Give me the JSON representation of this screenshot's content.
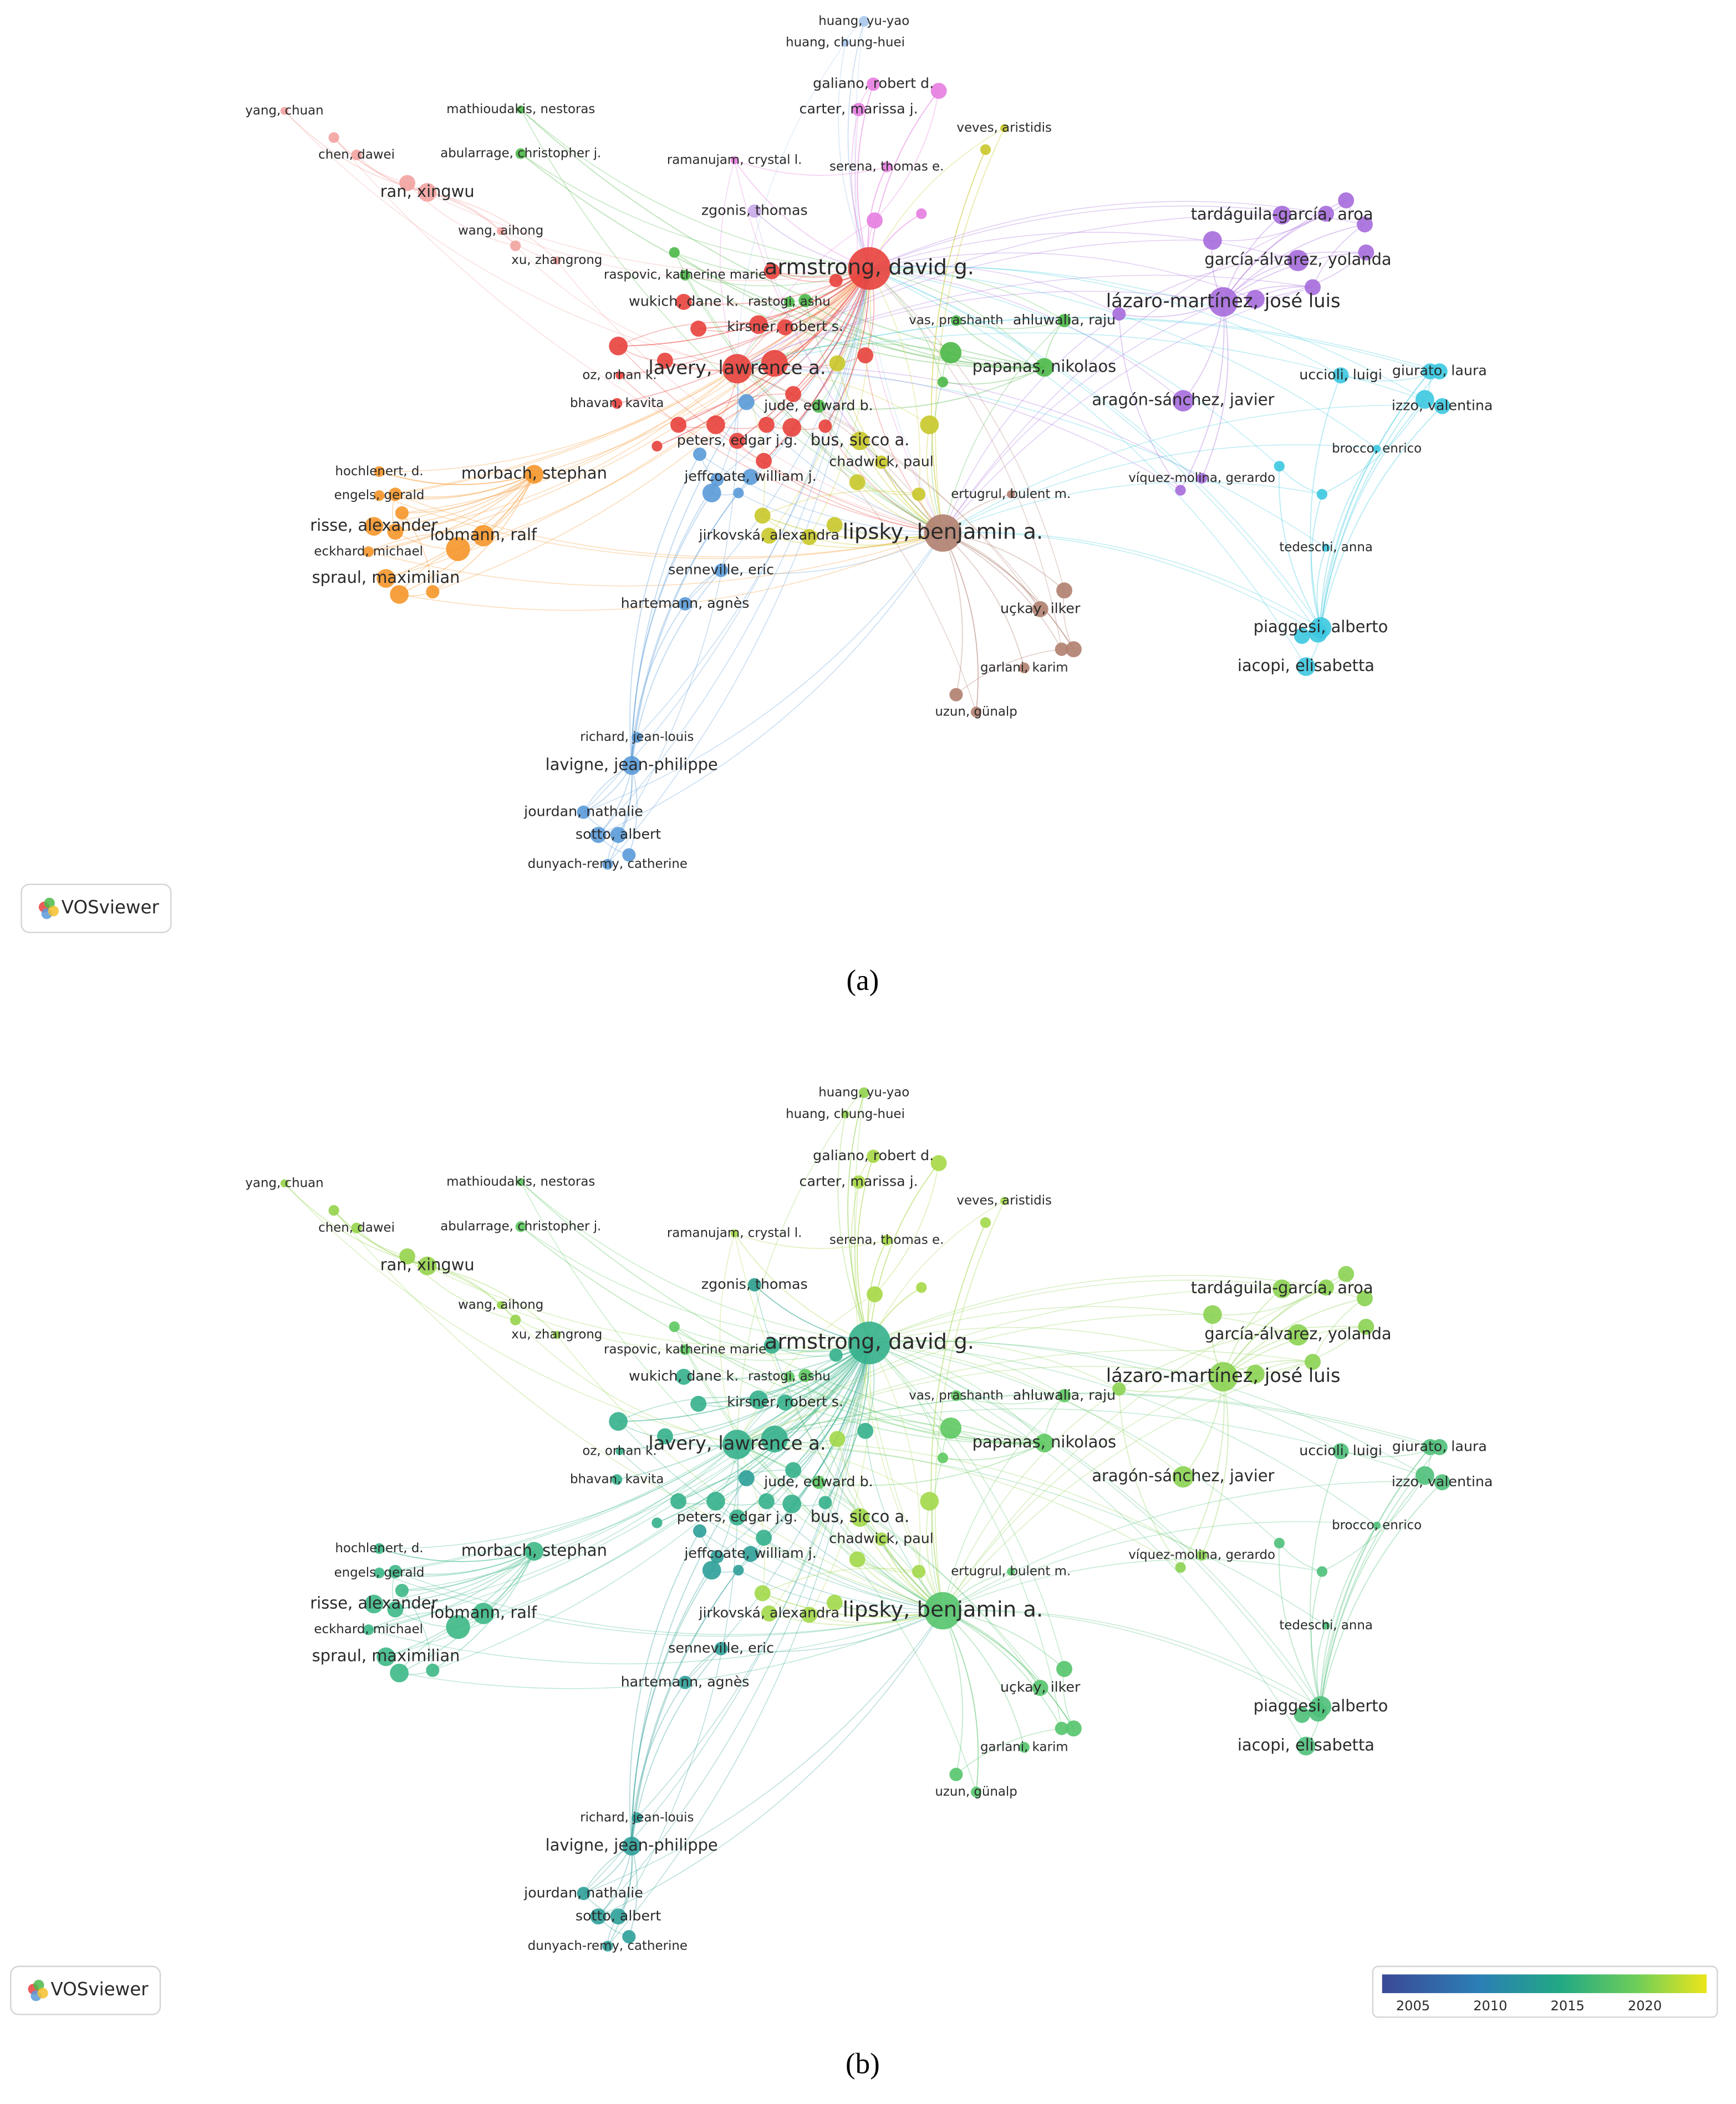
{
  "panels": [
    {
      "nodes": [
        "huang, yu-yao",
        "huang, chung-huei",
        "galiano, robert d.",
        "carter, marissa j.",
        "veves, aristidis",
        "yang, chuan",
        "mathioudakis, nestoras",
        "chen, dawei",
        "abularrage, christopher j.",
        "ramanujam, crystal l.",
        "serena, thomas e.",
        "ran, xingwu",
        "zgonis, thomas",
        "tardáguila-garcía, aroa",
        "wang, aihong",
        "xu, zhangrong",
        "garcía-álvarez, yolanda",
        "armstrong, david g.",
        "raspovic, katherine marie",
        "wukich, dane k.",
        "rastogi, ashu",
        "lázaro-martínez, josé luis",
        "kirsner, robert s.",
        "vas, prashanth",
        "ahluwalia, raju",
        "lavery, lawrence a.",
        "papanas, nikolaos",
        "oz, orhan k.",
        "uccioli, luigi",
        "giurato, laura",
        "jude, edward b.",
        "bhavan, kavita",
        "aragón-sánchez, javier",
        "izzo, valentina",
        "peters, edgar j.g.",
        "bus, sicco a.",
        "brocco, enrico",
        "hochlenert, d.",
        "morbach, stephan",
        "chadwick, paul",
        "jeffcoate, william j.",
        "víquez-molina, gerardo",
        "engels, gerald",
        "ertugrul, bulent m.",
        "risse, alexander",
        "lipsky, benjamin a.",
        "jirkovská, alexandra",
        "lobmann, ralf",
        "eckhard, michael",
        "tedeschi, anna",
        "spraul, maximilian",
        "senneville, eric",
        "hartemann, agnès",
        "uçkay, ilker",
        "piaggesi, alberto",
        "garlani, karim",
        "iacopi, elisabetta",
        "uzun, günalp",
        "richard, jean-louis",
        "lavigne, jean-philippe",
        "jourdan, nathalie",
        "sotto, albert",
        "dunyach-remy, catherine"
      ],
      "badge": "VOSviewer",
      "caption": "(a)"
    },
    {
      "nodes": [
        "huang, yu-yao",
        "huang, chung-huei",
        "galiano, robert d.",
        "carter, marissa j.",
        "veves, aristidis",
        "yang, chuan",
        "mathioudakis, nestoras",
        "chen, dawei",
        "abularrage, christopher j.",
        "ramanujam, crystal l.",
        "serena, thomas e.",
        "ran, xingwu",
        "zgonis, thomas",
        "tardáguila-garcía, aroa",
        "wang, aihong",
        "xu, zhangrong",
        "garcía-álvarez, yolanda",
        "armstrong, david g.",
        "raspovic, katherine marie",
        "wukich, dane k.",
        "rastogi, ashu",
        "lázaro-martínez, josé luis",
        "kirsner, robert s.",
        "vas, prashanth",
        "ahluwalia, raju",
        "lavery, lawrence a.",
        "papanas, nikolaos",
        "oz, orhan k.",
        "uccioli, luigi",
        "giurato, laura",
        "jude, edward b.",
        "bhavan, kavita",
        "aragón-sánchez, javier",
        "izzo, valentina",
        "peters, edgar j.g.",
        "bus, sicco a.",
        "brocco, enrico",
        "hochlenert, d.",
        "morbach, stephan",
        "chadwick, paul",
        "jeffcoate, william j.",
        "víquez-molina, gerardo",
        "engels, gerald",
        "ertugrul, bulent m.",
        "risse, alexander",
        "lipsky, benjamin a.",
        "jirkovská, alexandra",
        "lobmann, ralf",
        "eckhard, michael",
        "tedeschi, anna",
        "spraul, maximilian",
        "senneville, eric",
        "hartemann, agnès",
        "uçkay, ilker",
        "piaggesi, alberto",
        "garlani, karim",
        "iacopi, elisabetta",
        "uzun, günalp",
        "richard, jean-louis",
        "lavigne, jean-philippe",
        "jourdan, nathalie",
        "sotto, albert",
        "dunyach-remy, catherine"
      ],
      "badge": "VOSviewer",
      "caption": "(b)",
      "colorbar": {
        "lim": [
          2003,
          2024
        ],
        "ticks": [
          2005,
          2010,
          2015,
          2020
        ]
      }
    }
  ]
}
